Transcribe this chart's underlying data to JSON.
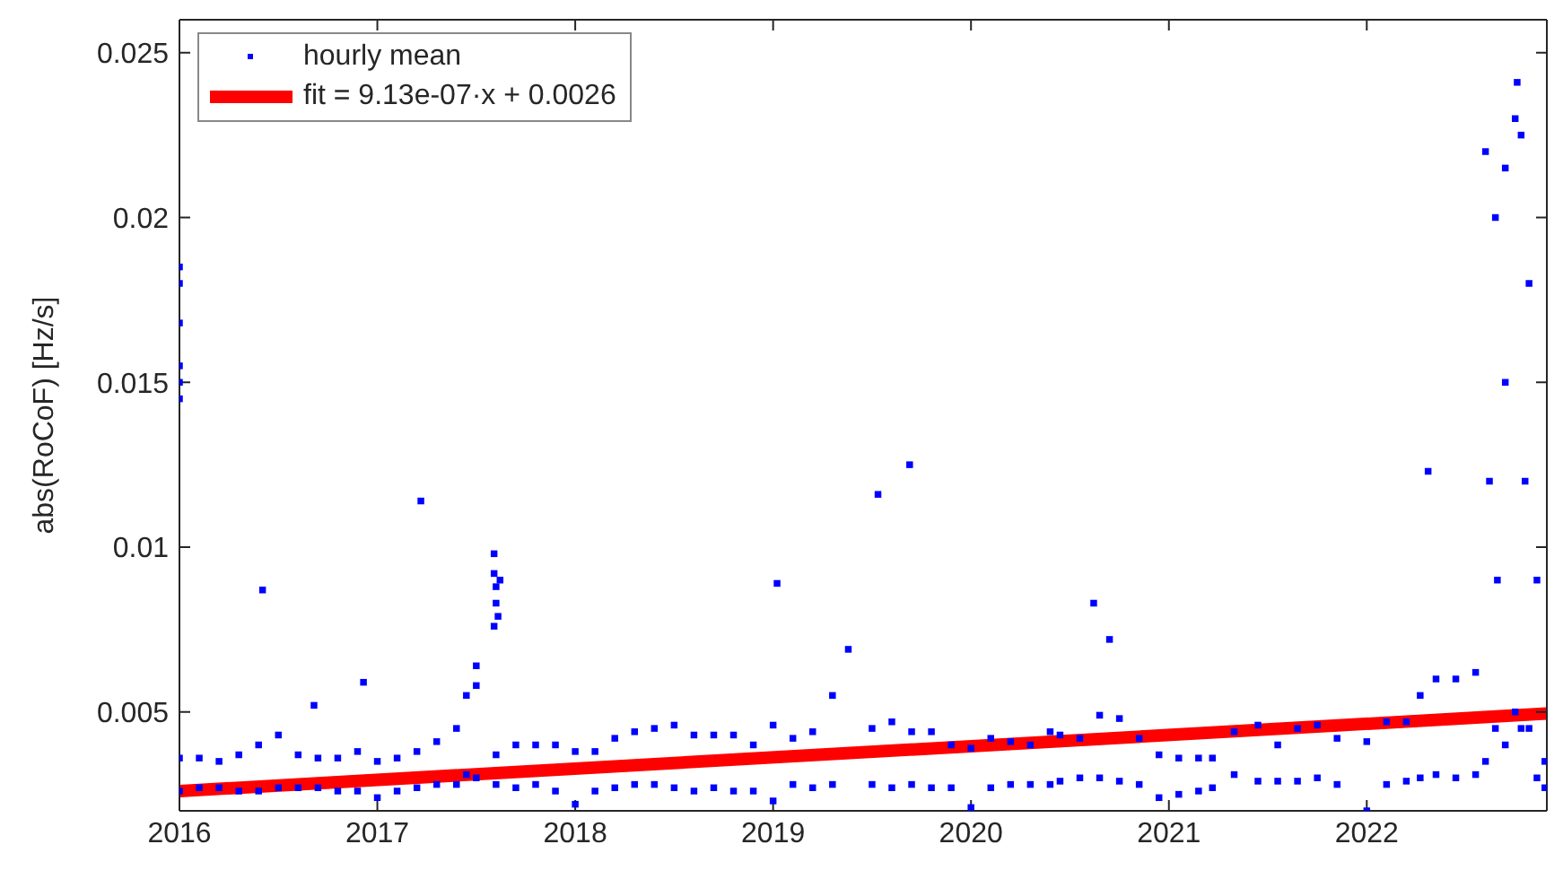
{
  "chart_data": {
    "type": "scatter",
    "ylabel": "abs(RoCoF) [Hz/s]",
    "xlim": [
      2016,
      2022.91
    ],
    "ylim": [
      0.002,
      0.026
    ],
    "xticks": [
      2016,
      2017,
      2018,
      2019,
      2020,
      2021,
      2022
    ],
    "yticks": [
      0.005,
      0.01,
      0.015,
      0.02,
      0.025
    ],
    "legend": "top left",
    "series": [
      {
        "name": "hourly mean",
        "marker": "square",
        "color": "#0000ff",
        "x": [
          2016.0,
          2016.0,
          2016.0,
          2016.0,
          2016.0,
          2016.0,
          2016.42,
          2016.68,
          2016.93,
          2017.22,
          2017.5,
          2017.59,
          2017.59,
          2017.6,
          2017.6,
          2017.61,
          2017.59,
          2017.62,
          2019.02,
          2019.53,
          2019.69,
          2020.62,
          2020.7,
          2022.31,
          2022.76,
          2022.62,
          2022.7,
          2022.8,
          2022.66,
          2019.38,
          2016.0,
          2016.0,
          2016.1,
          2016.1,
          2016.2,
          2016.2,
          2016.3,
          2016.3,
          2016.4,
          2016.4,
          2016.5,
          2016.5,
          2016.6,
          2016.6,
          2016.7,
          2016.7,
          2016.8,
          2016.8,
          2016.9,
          2016.9,
          2017.0,
          2017.0,
          2017.1,
          2017.1,
          2017.2,
          2017.2,
          2017.3,
          2017.3,
          2017.4,
          2017.4,
          2017.45,
          2017.45,
          2017.5,
          2017.5,
          2017.6,
          2017.6,
          2017.7,
          2017.7,
          2017.8,
          2017.8,
          2017.9,
          2017.9,
          2018.0,
          2018.0,
          2018.1,
          2018.1,
          2018.2,
          2018.2,
          2018.3,
          2018.3,
          2018.4,
          2018.4,
          2018.5,
          2018.5,
          2018.6,
          2018.6,
          2018.7,
          2018.7,
          2018.8,
          2018.8,
          2018.9,
          2018.9,
          2019.0,
          2019.0,
          2019.1,
          2019.1,
          2019.2,
          2019.2,
          2019.3,
          2019.3,
          2019.5,
          2019.5,
          2019.6,
          2019.6,
          2019.7,
          2019.7,
          2019.8,
          2019.8,
          2019.9,
          2019.9,
          2020.0,
          2020.0,
          2020.1,
          2020.1,
          2020.2,
          2020.2,
          2020.3,
          2020.3,
          2020.4,
          2020.4,
          2020.45,
          2020.45,
          2020.55,
          2020.55,
          2020.65,
          2020.65,
          2020.75,
          2020.75,
          2020.85,
          2020.85,
          2020.95,
          2020.95,
          2021.05,
          2021.05,
          2021.15,
          2021.15,
          2021.22,
          2021.22,
          2021.33,
          2021.33,
          2021.45,
          2021.45,
          2021.55,
          2021.55,
          2021.65,
          2021.65,
          2021.75,
          2021.75,
          2021.85,
          2021.85,
          2022.0,
          2022.0,
          2022.1,
          2022.1,
          2022.2,
          2022.2,
          2022.27,
          2022.27,
          2022.35,
          2022.35,
          2022.45,
          2022.45,
          2022.55,
          2022.55,
          2022.6,
          2022.6,
          2022.65,
          2022.65,
          2022.7,
          2022.7,
          2022.75,
          2022.75,
          2022.78,
          2022.78,
          2022.82,
          2022.82,
          2022.86,
          2022.86,
          2022.9,
          2022.9
        ],
        "values": [
          0.0185,
          0.018,
          0.0168,
          0.0155,
          0.0145,
          0.015,
          0.0087,
          0.0052,
          0.0059,
          0.0114,
          0.0064,
          0.0098,
          0.0092,
          0.0088,
          0.0083,
          0.0079,
          0.0076,
          0.009,
          0.0089,
          0.0116,
          0.0125,
          0.0083,
          0.0072,
          0.0123,
          0.0241,
          0.012,
          0.015,
          0.012,
          0.009,
          0.0069,
          0.0026,
          0.0036,
          0.0027,
          0.0036,
          0.0027,
          0.0035,
          0.0026,
          0.0037,
          0.0026,
          0.004,
          0.0027,
          0.0043,
          0.0027,
          0.0037,
          0.0027,
          0.0036,
          0.0026,
          0.0036,
          0.0026,
          0.0038,
          0.0024,
          0.0035,
          0.0026,
          0.0036,
          0.0027,
          0.0038,
          0.0028,
          0.0041,
          0.0028,
          0.0045,
          0.0031,
          0.0055,
          0.003,
          0.0058,
          0.0028,
          0.0037,
          0.0027,
          0.004,
          0.0028,
          0.004,
          0.0026,
          0.004,
          0.0022,
          0.0038,
          0.0026,
          0.0038,
          0.0027,
          0.0042,
          0.0028,
          0.0044,
          0.0028,
          0.0045,
          0.0027,
          0.0046,
          0.0026,
          0.0043,
          0.0027,
          0.0043,
          0.0026,
          0.0043,
          0.0026,
          0.004,
          0.0023,
          0.0046,
          0.0028,
          0.0042,
          0.0027,
          0.0044,
          0.0028,
          0.0055,
          0.0028,
          0.0045,
          0.0027,
          0.0047,
          0.0028,
          0.0044,
          0.0027,
          0.0044,
          0.0027,
          0.004,
          0.0021,
          0.0039,
          0.0027,
          0.0042,
          0.0028,
          0.0041,
          0.0028,
          0.004,
          0.0028,
          0.0044,
          0.0029,
          0.0043,
          0.003,
          0.0042,
          0.003,
          0.0049,
          0.0029,
          0.0048,
          0.0028,
          0.0042,
          0.0024,
          0.0037,
          0.0025,
          0.0036,
          0.0026,
          0.0036,
          0.0027,
          0.0036,
          0.0031,
          0.0044,
          0.0029,
          0.0046,
          0.0029,
          0.004,
          0.0029,
          0.0045,
          0.003,
          0.0046,
          0.0028,
          0.0042,
          0.002,
          0.0041,
          0.0028,
          0.0047,
          0.0029,
          0.0047,
          0.003,
          0.0055,
          0.0031,
          0.006,
          0.003,
          0.006,
          0.0031,
          0.0062,
          0.0035,
          0.022,
          0.0045,
          0.02,
          0.004,
          0.0215,
          0.005,
          0.023,
          0.0045,
          0.0225,
          0.0045,
          0.018,
          0.003,
          0.009,
          0.0027,
          0.0035
        ]
      },
      {
        "name": "fit = 9.13e-07·x + 0.0026",
        "type": "line",
        "line_style": "solid",
        "color": "#ff0000",
        "x": [
          2016,
          2022.91
        ],
        "values": [
          0.0026,
          0.00495
        ]
      }
    ]
  }
}
